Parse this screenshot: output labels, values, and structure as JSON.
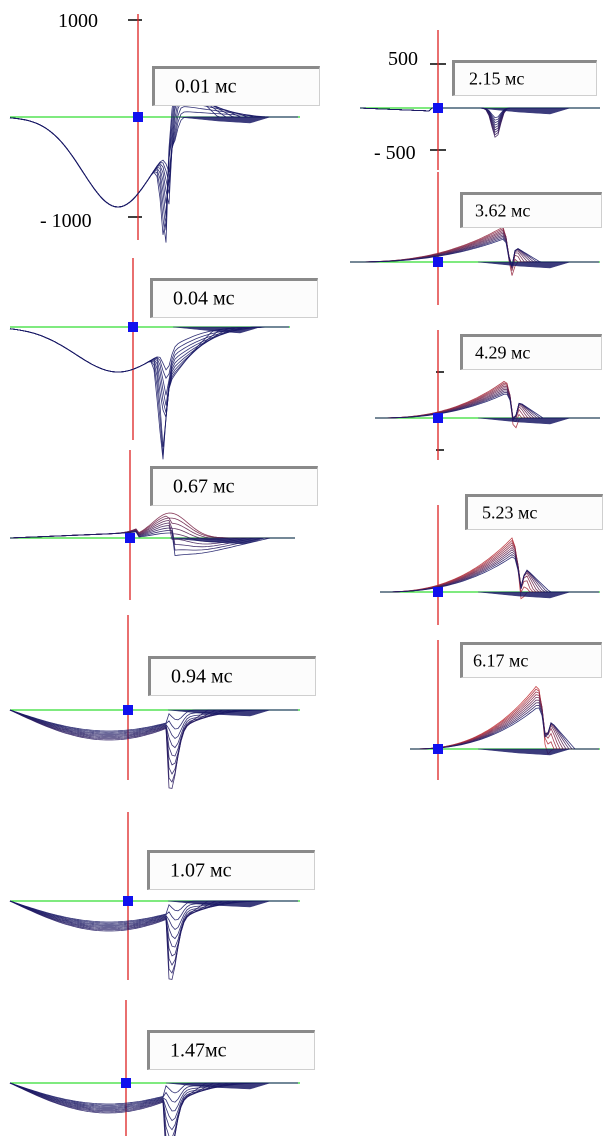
{
  "figure": {
    "axis_labels": {
      "left_top": "1000",
      "left_bottom": "- 1000",
      "right_top": "500",
      "right_bottom": "- 500"
    },
    "colors": {
      "baseline": "#33dd33",
      "vertical_axis": "#dd2222",
      "marker": "#1111ee",
      "mesh_low": "#1a1a66",
      "mesh_high": "#cc3333"
    },
    "panels": [
      {
        "time_label": "0.01 мс"
      },
      {
        "time_label": "0.04 мс"
      },
      {
        "time_label": "0.67 мс"
      },
      {
        "time_label": "0.94 мс"
      },
      {
        "time_label": "1.07 мс"
      },
      {
        "time_label": "1.47мс"
      },
      {
        "time_label": "2.15 мс"
      },
      {
        "time_label": "3.62 мс"
      },
      {
        "time_label": "4.29 мс"
      },
      {
        "time_label": "5.23 мс"
      },
      {
        "time_label": "6.17 мс"
      }
    ]
  }
}
